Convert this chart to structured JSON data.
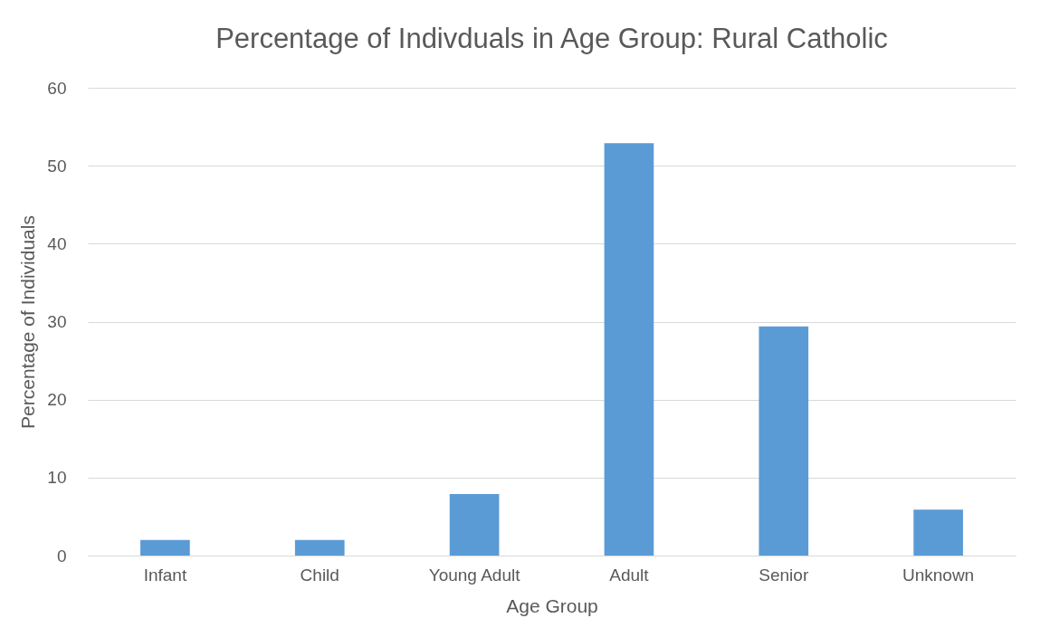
{
  "chart_data": {
    "type": "bar",
    "title": "Percentage of Indivduals in Age Group: Rural Catholic",
    "xlabel": "Age Group",
    "ylabel": "Percentage of Individuals",
    "categories": [
      "Infant",
      "Child",
      "Young Adult",
      "Adult",
      "Senior",
      "Unknown"
    ],
    "values": [
      2.0,
      2.0,
      7.9,
      52.9,
      29.4,
      5.9
    ],
    "color": "#5b9bd5",
    "ylim": [
      0,
      60
    ],
    "yticks": [
      0,
      10,
      20,
      30,
      40,
      50,
      60
    ],
    "grid": "y"
  }
}
